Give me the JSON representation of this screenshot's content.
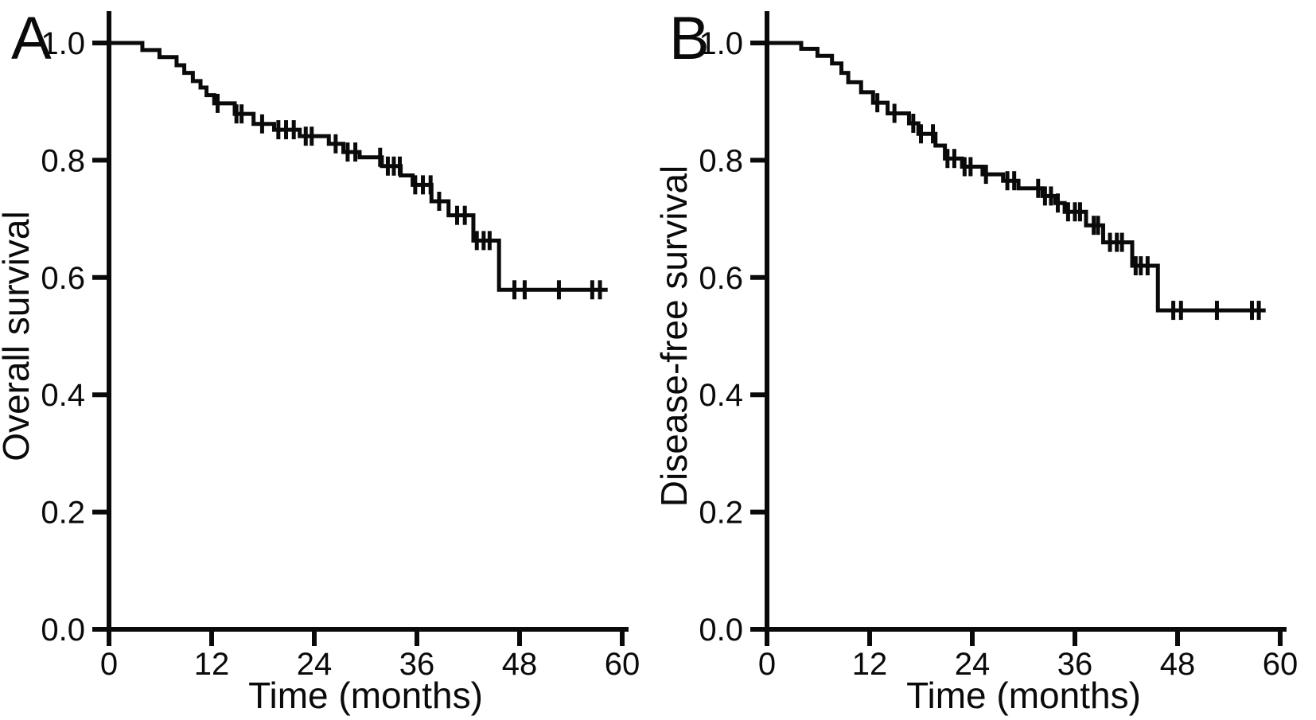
{
  "figure": {
    "background": "#ffffff",
    "ink_color": "#0a0a0a"
  },
  "chart_data": [
    {
      "type": "line",
      "subtype": "kaplan_meier_step",
      "panel_label": "A",
      "title": "",
      "xlabel": "Time (months)",
      "ylabel": "Overall survival",
      "xlim": [
        0,
        62
      ],
      "ylim": [
        0.0,
        1.0
      ],
      "x_ticks": [
        "0",
        "12",
        "24",
        "36",
        "48",
        "60"
      ],
      "x_tick_values": [
        0,
        12,
        24,
        36,
        48,
        60
      ],
      "y_ticks": [
        "1.0",
        "0.8",
        "0.6",
        "0.4",
        "0.2",
        "0.0"
      ],
      "y_tick_values": [
        1.0,
        0.8,
        0.6,
        0.4,
        0.2,
        0.0
      ],
      "grid": false,
      "legend": null,
      "series": [
        {
          "name": "Overall survival",
          "color": "#0a0a0a",
          "steps": [
            [
              0,
              1.0
            ],
            [
              3.9,
              0.988
            ],
            [
              5.9,
              0.976
            ],
            [
              7.9,
              0.962
            ],
            [
              8.8,
              0.949
            ],
            [
              9.8,
              0.935
            ],
            [
              10.7,
              0.924
            ],
            [
              11.4,
              0.911
            ],
            [
              12.3,
              0.897
            ],
            [
              14.7,
              0.879
            ],
            [
              16.9,
              0.862
            ],
            [
              19.3,
              0.852
            ],
            [
              22.3,
              0.841
            ],
            [
              25.7,
              0.828
            ],
            [
              27.4,
              0.814
            ],
            [
              29.3,
              0.805
            ],
            [
              31.9,
              0.79
            ],
            [
              34.1,
              0.774
            ],
            [
              35.5,
              0.758
            ],
            [
              37.7,
              0.73
            ],
            [
              39.7,
              0.706
            ],
            [
              42.6,
              0.663
            ],
            [
              45.6,
              0.579
            ]
          ],
          "end_time": 58.3,
          "censor_times": [
            12.7,
            14.9,
            15.5,
            17.9,
            19.8,
            20.7,
            21.6,
            23.0,
            23.7,
            26.5,
            27.9,
            28.8,
            31.7,
            32.6,
            33.3,
            34.0,
            35.8,
            36.7,
            37.6,
            38.6,
            40.7,
            41.6,
            43.0,
            43.8,
            44.5,
            47.4,
            48.6,
            52.6,
            56.5,
            57.4
          ]
        }
      ]
    },
    {
      "type": "line",
      "subtype": "kaplan_meier_step",
      "panel_label": "B",
      "title": "",
      "xlabel": "Time (months)",
      "ylabel": "Disease-free survival",
      "xlim": [
        0,
        62
      ],
      "ylim": [
        0.0,
        1.0
      ],
      "x_ticks": [
        "0",
        "12",
        "24",
        "36",
        "48",
        "60"
      ],
      "x_tick_values": [
        0,
        12,
        24,
        36,
        48,
        60
      ],
      "y_ticks": [
        "1.0",
        "0.8",
        "0.6",
        "0.4",
        "0.2",
        "0.0"
      ],
      "y_tick_values": [
        1.0,
        0.8,
        0.6,
        0.4,
        0.2,
        0.0
      ],
      "grid": false,
      "legend": null,
      "series": [
        {
          "name": "Disease-free survival",
          "color": "#0a0a0a",
          "steps": [
            [
              0,
              1.0
            ],
            [
              4.0,
              0.99
            ],
            [
              5.9,
              0.978
            ],
            [
              7.6,
              0.965
            ],
            [
              8.7,
              0.949
            ],
            [
              9.5,
              0.933
            ],
            [
              11.0,
              0.916
            ],
            [
              12.4,
              0.898
            ],
            [
              14.1,
              0.88
            ],
            [
              16.6,
              0.863
            ],
            [
              17.7,
              0.845
            ],
            [
              19.7,
              0.825
            ],
            [
              20.8,
              0.803
            ],
            [
              22.8,
              0.789
            ],
            [
              25.2,
              0.776
            ],
            [
              27.6,
              0.765
            ],
            [
              29.4,
              0.752
            ],
            [
              32.2,
              0.739
            ],
            [
              33.7,
              0.727
            ],
            [
              34.8,
              0.712
            ],
            [
              37.3,
              0.689
            ],
            [
              39.3,
              0.66
            ],
            [
              42.7,
              0.62
            ],
            [
              45.7,
              0.544
            ]
          ],
          "end_time": 58.3,
          "censor_times": [
            12.9,
            14.9,
            17.1,
            18.0,
            19.4,
            21.1,
            21.9,
            23.1,
            23.8,
            25.6,
            28.1,
            28.9,
            31.7,
            32.5,
            33.2,
            34.0,
            35.2,
            36.0,
            36.6,
            38.2,
            38.7,
            40.1,
            40.9,
            41.5,
            43.1,
            43.7,
            44.5,
            47.5,
            48.4,
            52.6,
            56.7,
            57.5
          ]
        }
      ]
    }
  ]
}
